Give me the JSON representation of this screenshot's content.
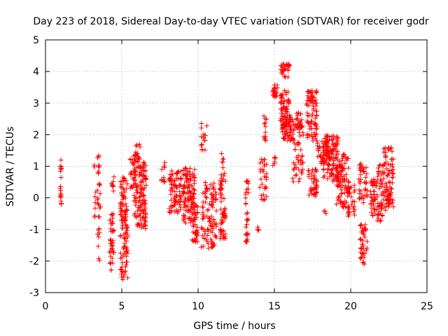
{
  "chart_data": {
    "type": "scatter",
    "title": "Day 223 of 2018, Sidereal Day-to-day VTEC variation (SDTVAR) for receiver godr",
    "xlabel": "GPS time / hours",
    "ylabel": "SDTVAR / TECUs",
    "xlim": [
      0,
      25
    ],
    "ylim": [
      -3,
      5
    ],
    "xticks": [
      "0",
      "5",
      "10",
      "15",
      "20",
      "25"
    ],
    "yticks": [
      "-3",
      "-2",
      "-1",
      "0",
      "1",
      "2",
      "3",
      "4",
      "5"
    ],
    "grid": true,
    "marker": "+",
    "color": "#ff0000",
    "clusters": [
      {
        "x": [
          0.95,
          1.05
        ],
        "y": [
          -0.5,
          1.2
        ],
        "n": 18
      },
      {
        "x": [
          3.1,
          3.3
        ],
        "y": [
          -0.8,
          1.3
        ],
        "n": 8
      },
      {
        "x": [
          3.4,
          3.6
        ],
        "y": [
          -2.0,
          1.5
        ],
        "n": 30
      },
      {
        "x": [
          4.2,
          4.5
        ],
        "y": [
          -2.3,
          -0.5
        ],
        "n": 40
      },
      {
        "x": [
          4.3,
          4.5
        ],
        "y": [
          0.2,
          0.7
        ],
        "n": 8
      },
      {
        "x": [
          4.9,
          5.4
        ],
        "y": [
          -2.6,
          -0.5
        ],
        "n": 70
      },
      {
        "x": [
          4.9,
          5.4
        ],
        "y": [
          -0.5,
          0.7
        ],
        "n": 40
      },
      {
        "x": [
          5.5,
          5.9
        ],
        "y": [
          0.3,
          1.4
        ],
        "n": 30
      },
      {
        "x": [
          5.8,
          6.2
        ],
        "y": [
          -0.9,
          1.7
        ],
        "n": 60
      },
      {
        "x": [
          6.2,
          6.6
        ],
        "y": [
          -1.0,
          1.2
        ],
        "n": 80
      },
      {
        "x": [
          7.6,
          7.9
        ],
        "y": [
          0.5,
          1.2
        ],
        "n": 10
      },
      {
        "x": [
          8.1,
          8.9
        ],
        "y": [
          -0.5,
          0.9
        ],
        "n": 80
      },
      {
        "x": [
          9.0,
          9.8
        ],
        "y": [
          -0.8,
          1.0
        ],
        "n": 110
      },
      {
        "x": [
          9.6,
          10.0
        ],
        "y": [
          -1.4,
          -0.2
        ],
        "n": 40
      },
      {
        "x": [
          10.2,
          10.6
        ],
        "y": [
          1.5,
          2.4
        ],
        "n": 15
      },
      {
        "x": [
          10.2,
          11.2
        ],
        "y": [
          -1.6,
          0.5
        ],
        "n": 100
      },
      {
        "x": [
          11.4,
          11.8
        ],
        "y": [
          -1.3,
          0.8
        ],
        "n": 60
      },
      {
        "x": [
          11.5,
          11.7
        ],
        "y": [
          0.9,
          1.4
        ],
        "n": 6
      },
      {
        "x": [
          13.1,
          13.3
        ],
        "y": [
          -1.4,
          0.6
        ],
        "n": 30
      },
      {
        "x": [
          13.9,
          14.1
        ],
        "y": [
          -1.1,
          -0.9
        ],
        "n": 4
      },
      {
        "x": [
          14.0,
          14.5
        ],
        "y": [
          -0.1,
          1.3
        ],
        "n": 30
      },
      {
        "x": [
          14.3,
          14.5
        ],
        "y": [
          1.8,
          2.6
        ],
        "n": 12
      },
      {
        "x": [
          14.9,
          15.2
        ],
        "y": [
          3.1,
          3.6
        ],
        "n": 20
      },
      {
        "x": [
          14.9,
          15.1
        ],
        "y": [
          1.0,
          1.3
        ],
        "n": 6
      },
      {
        "x": [
          15.4,
          16.0
        ],
        "y": [
          3.8,
          4.3
        ],
        "n": 30
      },
      {
        "x": [
          15.4,
          16.0
        ],
        "y": [
          2.3,
          3.4
        ],
        "n": 50
      },
      {
        "x": [
          15.5,
          16.2
        ],
        "y": [
          1.8,
          2.6
        ],
        "n": 70
      },
      {
        "x": [
          16.2,
          16.9
        ],
        "y": [
          0.5,
          2.4
        ],
        "n": 60
      },
      {
        "x": [
          16.4,
          16.8
        ],
        "y": [
          2.2,
          2.8
        ],
        "n": 20
      },
      {
        "x": [
          17.1,
          17.8
        ],
        "y": [
          1.8,
          3.4
        ],
        "n": 80
      },
      {
        "x": [
          17.2,
          17.8
        ],
        "y": [
          0.0,
          1.0
        ],
        "n": 40
      },
      {
        "x": [
          17.8,
          18.5
        ],
        "y": [
          1.0,
          1.8
        ],
        "n": 40
      },
      {
        "x": [
          18.2,
          19.2
        ],
        "y": [
          0.5,
          2.0
        ],
        "n": 120
      },
      {
        "x": [
          18.2,
          18.4
        ],
        "y": [
          -0.5,
          -0.3
        ],
        "n": 3
      },
      {
        "x": [
          19.0,
          19.9
        ],
        "y": [
          -0.3,
          1.4
        ],
        "n": 90
      },
      {
        "x": [
          19.8,
          20.3
        ],
        "y": [
          -0.6,
          0.4
        ],
        "n": 30
      },
      {
        "x": [
          20.5,
          21.1
        ],
        "y": [
          -0.2,
          1.1
        ],
        "n": 40
      },
      {
        "x": [
          20.6,
          21.1
        ],
        "y": [
          -2.1,
          -0.8
        ],
        "n": 40
      },
      {
        "x": [
          21.3,
          21.7
        ],
        "y": [
          -0.6,
          0.6
        ],
        "n": 40
      },
      {
        "x": [
          21.7,
          22.1
        ],
        "y": [
          -0.8,
          1.1
        ],
        "n": 40
      },
      {
        "x": [
          22.1,
          22.8
        ],
        "y": [
          -0.4,
          1.6
        ],
        "n": 70
      },
      {
        "x": [
          22.3,
          22.7
        ],
        "y": [
          -0.2,
          0.3
        ],
        "n": 20
      }
    ]
  }
}
